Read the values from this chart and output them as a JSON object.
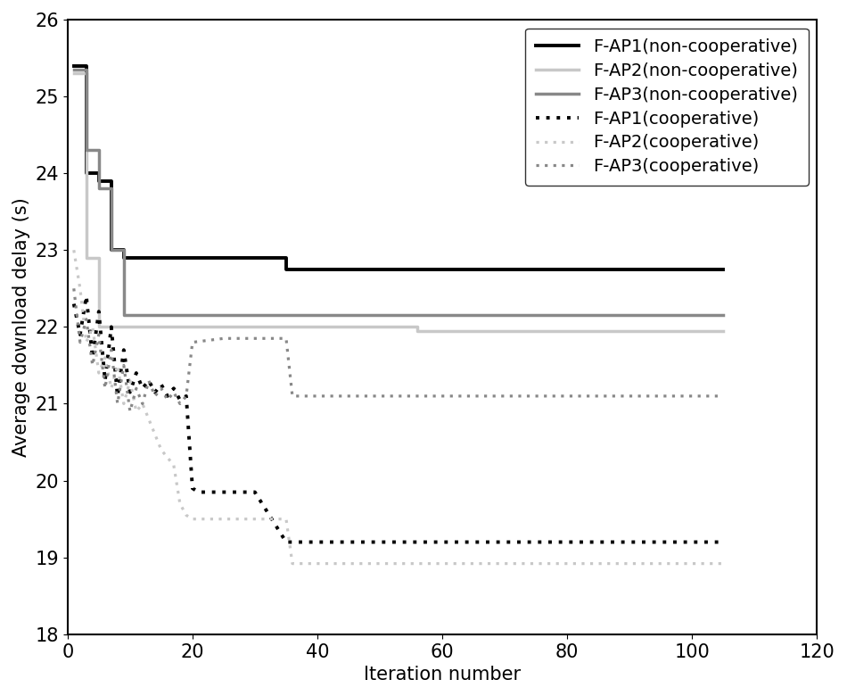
{
  "xlabel": "Iteration number",
  "ylabel": "Average download delay (s)",
  "xlim": [
    0,
    120
  ],
  "ylim": [
    18,
    26
  ],
  "yticks": [
    18,
    19,
    20,
    21,
    22,
    23,
    24,
    25,
    26
  ],
  "xticks": [
    0,
    20,
    40,
    60,
    80,
    100,
    120
  ],
  "legend_loc": "upper right",
  "font_size": 15,
  "FAP1_non_x": [
    1,
    2,
    3,
    4,
    5,
    6,
    7,
    8,
    9,
    10,
    11,
    12,
    35,
    105
  ],
  "FAP1_non_y": [
    25.4,
    25.4,
    24.0,
    24.0,
    23.9,
    23.9,
    23.0,
    23.0,
    22.9,
    22.9,
    22.9,
    22.9,
    22.75,
    22.75
  ],
  "FAP2_non_x": [
    1,
    2,
    3,
    4,
    5,
    6,
    55,
    56,
    105
  ],
  "FAP2_non_y": [
    25.3,
    25.3,
    22.9,
    22.9,
    22.0,
    22.0,
    22.0,
    21.95,
    21.95
  ],
  "FAP3_non_x": [
    1,
    2,
    3,
    4,
    5,
    6,
    7,
    8,
    9,
    10,
    11,
    105
  ],
  "FAP3_non_y": [
    25.35,
    25.35,
    24.3,
    24.3,
    23.8,
    23.8,
    23.0,
    23.0,
    22.15,
    22.15,
    22.15,
    22.15
  ],
  "FAP1_coo_x": [
    1,
    2,
    3,
    4,
    5,
    6,
    7,
    8,
    9,
    10,
    11,
    12,
    13,
    14,
    15,
    16,
    17,
    18,
    19,
    20,
    21,
    25,
    30,
    35,
    36,
    37,
    105
  ],
  "FAP1_coo_y": [
    22.3,
    21.9,
    22.4,
    21.6,
    22.2,
    21.3,
    22.0,
    21.1,
    21.7,
    21.15,
    21.4,
    21.2,
    21.3,
    21.15,
    21.25,
    21.1,
    21.2,
    21.05,
    21.1,
    19.9,
    19.85,
    19.85,
    19.85,
    19.2,
    19.2,
    19.2,
    19.2
  ],
  "FAP2_coo_x": [
    1,
    2,
    3,
    4,
    5,
    6,
    7,
    8,
    9,
    10,
    11,
    12,
    13,
    14,
    15,
    16,
    17,
    18,
    19,
    20,
    25,
    30,
    35,
    36,
    105
  ],
  "FAP2_coo_y": [
    23.0,
    22.5,
    21.8,
    22.0,
    21.4,
    21.6,
    21.2,
    21.5,
    21.0,
    21.3,
    20.9,
    21.0,
    20.8,
    20.6,
    20.4,
    20.3,
    20.2,
    19.7,
    19.55,
    19.5,
    19.5,
    19.5,
    19.5,
    18.92,
    18.92
  ],
  "FAP3_coo_x": [
    1,
    2,
    3,
    4,
    5,
    6,
    7,
    8,
    9,
    10,
    11,
    12,
    13,
    14,
    15,
    16,
    17,
    18,
    19,
    20,
    25,
    30,
    35,
    36,
    105
  ],
  "FAP3_coo_y": [
    22.5,
    21.8,
    22.1,
    21.5,
    21.9,
    21.2,
    21.7,
    21.0,
    21.5,
    20.9,
    21.2,
    21.0,
    21.3,
    21.1,
    21.2,
    21.05,
    21.15,
    21.0,
    21.1,
    21.8,
    21.85,
    21.85,
    21.85,
    21.1,
    21.1
  ],
  "color_black": "#000000",
  "color_lightgray": "#c8c8c8",
  "color_midgray": "#888888",
  "lw_solid_black": 2.8,
  "lw_solid_gray": 2.5,
  "lw_dotted_black": 2.8,
  "lw_dotted_gray": 2.3
}
